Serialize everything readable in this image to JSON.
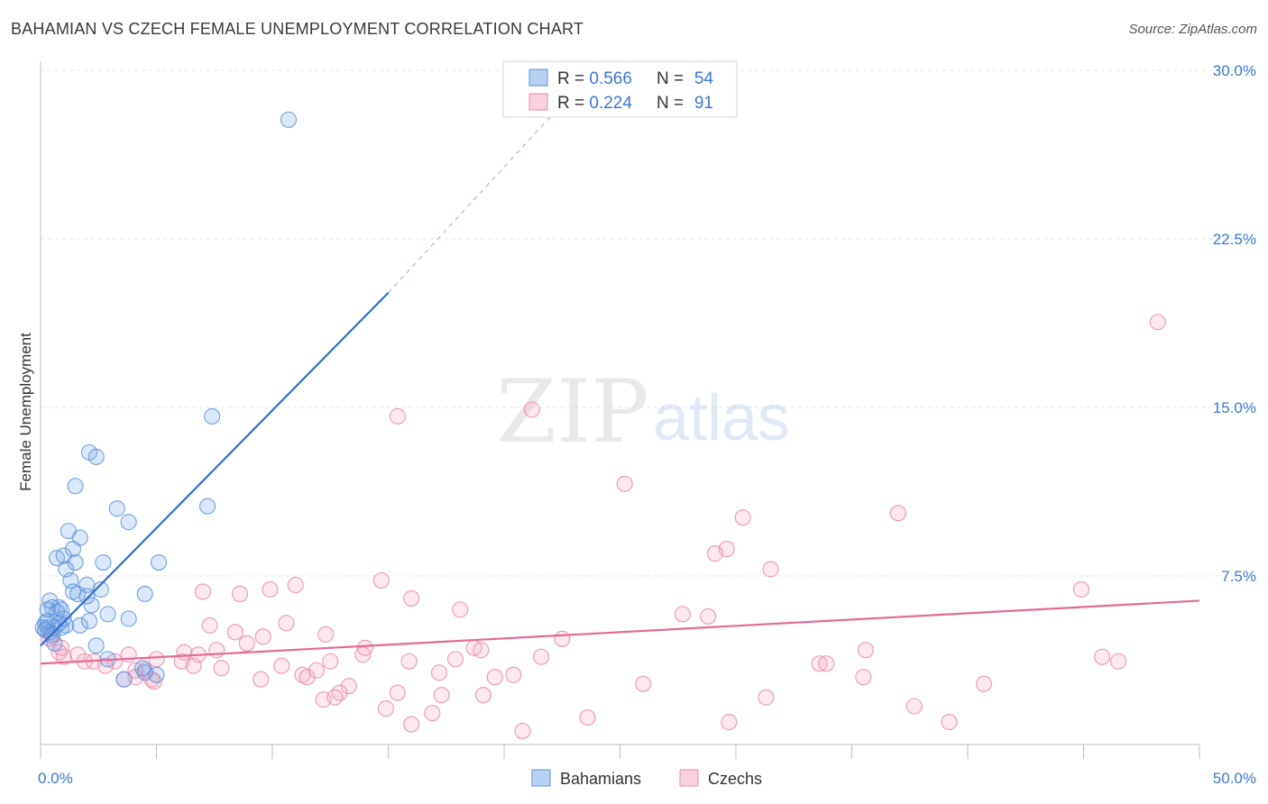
{
  "title": "BAHAMIAN VS CZECH FEMALE UNEMPLOYMENT CORRELATION CHART",
  "source": "Source: ZipAtlas.com",
  "watermark": {
    "zip": "ZIP",
    "atlas": "atlas"
  },
  "chart_data": {
    "type": "scatter",
    "title": "BAHAMIAN VS CZECH FEMALE UNEMPLOYMENT CORRELATION CHART",
    "xlabel": "",
    "ylabel": "Female Unemployment",
    "xlim": [
      0,
      50
    ],
    "ylim": [
      0,
      30
    ],
    "x_tick_labels": [
      "0.0%",
      "50.0%"
    ],
    "y_ticks": [
      7.5,
      15.0,
      22.5,
      30.0
    ],
    "y_tick_labels": [
      "7.5%",
      "15.0%",
      "22.5%",
      "30.0%"
    ],
    "grid": true,
    "legend_position": "top-center",
    "colors": {
      "bahamians": "#6fa3e6",
      "czechs": "#f3a3bd",
      "bahamians_line": "#2f6fd1",
      "czechs_line": "#e36b96",
      "accent_text": "#3a78d4"
    },
    "stats": [
      {
        "series": "Bahamians",
        "r_label": "R = ",
        "r": "0.566",
        "n_label": "N = ",
        "n": "54"
      },
      {
        "series": "Czechs",
        "r_label": "R = ",
        "r": "0.224",
        "n_label": "N = ",
        "n": "91"
      }
    ],
    "series": [
      {
        "name": "Bahamians",
        "trend": {
          "x": [
            0.0,
            15.0
          ],
          "y": [
            4.4,
            20.1
          ],
          "dashed_to": [
            22.5,
            28.5
          ]
        },
        "points": [
          [
            10.7,
            27.8
          ],
          [
            7.4,
            14.6
          ],
          [
            2.1,
            13.0
          ],
          [
            2.4,
            12.8
          ],
          [
            1.5,
            11.5
          ],
          [
            3.3,
            10.5
          ],
          [
            7.2,
            10.6
          ],
          [
            3.8,
            9.9
          ],
          [
            1.2,
            9.5
          ],
          [
            1.7,
            9.2
          ],
          [
            1.4,
            8.7
          ],
          [
            0.7,
            8.3
          ],
          [
            1.0,
            8.4
          ],
          [
            1.5,
            8.1
          ],
          [
            2.7,
            8.1
          ],
          [
            5.1,
            8.1
          ],
          [
            1.1,
            7.8
          ],
          [
            1.3,
            7.3
          ],
          [
            2.0,
            7.1
          ],
          [
            2.6,
            6.9
          ],
          [
            1.4,
            6.8
          ],
          [
            4.5,
            6.7
          ],
          [
            2.0,
            6.6
          ],
          [
            2.2,
            6.2
          ],
          [
            0.4,
            6.4
          ],
          [
            0.8,
            6.1
          ],
          [
            0.5,
            6.1
          ],
          [
            0.3,
            6.0
          ],
          [
            0.7,
            5.9
          ],
          [
            2.9,
            5.8
          ],
          [
            3.8,
            5.6
          ],
          [
            0.2,
            5.4
          ],
          [
            1.1,
            5.3
          ],
          [
            1.7,
            5.3
          ],
          [
            2.1,
            5.5
          ],
          [
            0.3,
            5.2
          ],
          [
            0.6,
            5.2
          ],
          [
            0.9,
            5.2
          ],
          [
            0.2,
            5.1
          ],
          [
            0.5,
            4.9
          ],
          [
            0.4,
            5.0
          ],
          [
            0.1,
            5.2
          ],
          [
            0.8,
            5.4
          ],
          [
            2.4,
            4.4
          ],
          [
            0.6,
            4.5
          ],
          [
            2.9,
            3.8
          ],
          [
            4.5,
            3.2
          ],
          [
            3.6,
            2.9
          ],
          [
            4.4,
            3.4
          ],
          [
            5.0,
            3.1
          ],
          [
            1.0,
            5.6
          ],
          [
            0.3,
            5.5
          ],
          [
            0.9,
            6.0
          ],
          [
            1.6,
            6.7
          ]
        ]
      },
      {
        "name": "Czechs",
        "trend": {
          "x": [
            0.0,
            50.0
          ],
          "y": [
            3.6,
            6.4
          ]
        },
        "points": [
          [
            48.2,
            18.8
          ],
          [
            21.2,
            14.9
          ],
          [
            15.4,
            14.6
          ],
          [
            25.2,
            11.6
          ],
          [
            30.3,
            10.1
          ],
          [
            37.0,
            10.3
          ],
          [
            29.6,
            8.7
          ],
          [
            29.1,
            8.5
          ],
          [
            31.5,
            7.8
          ],
          [
            14.7,
            7.3
          ],
          [
            11.0,
            7.1
          ],
          [
            9.9,
            6.9
          ],
          [
            7.0,
            6.8
          ],
          [
            8.6,
            6.7
          ],
          [
            16.0,
            6.5
          ],
          [
            44.9,
            6.9
          ],
          [
            18.1,
            6.0
          ],
          [
            27.7,
            5.8
          ],
          [
            28.8,
            5.7
          ],
          [
            7.3,
            5.3
          ],
          [
            10.6,
            5.4
          ],
          [
            8.4,
            5.0
          ],
          [
            12.3,
            4.9
          ],
          [
            9.6,
            4.8
          ],
          [
            22.5,
            4.7
          ],
          [
            8.9,
            4.5
          ],
          [
            14.0,
            4.3
          ],
          [
            18.7,
            4.3
          ],
          [
            19.0,
            4.2
          ],
          [
            7.6,
            4.2
          ],
          [
            6.2,
            4.1
          ],
          [
            35.6,
            4.2
          ],
          [
            0.9,
            4.3
          ],
          [
            1.6,
            4.0
          ],
          [
            3.8,
            4.0
          ],
          [
            6.8,
            4.0
          ],
          [
            13.9,
            4.0
          ],
          [
            21.6,
            3.9
          ],
          [
            1.0,
            3.9
          ],
          [
            1.9,
            3.7
          ],
          [
            2.3,
            3.7
          ],
          [
            3.2,
            3.7
          ],
          [
            5.0,
            3.8
          ],
          [
            6.1,
            3.7
          ],
          [
            15.9,
            3.7
          ],
          [
            17.9,
            3.8
          ],
          [
            12.5,
            3.7
          ],
          [
            10.4,
            3.5
          ],
          [
            33.6,
            3.6
          ],
          [
            33.9,
            3.6
          ],
          [
            45.8,
            3.9
          ],
          [
            46.5,
            3.7
          ],
          [
            2.8,
            3.5
          ],
          [
            6.6,
            3.5
          ],
          [
            7.8,
            3.4
          ],
          [
            11.9,
            3.3
          ],
          [
            4.1,
            3.3
          ],
          [
            4.5,
            3.3
          ],
          [
            17.2,
            3.2
          ],
          [
            11.3,
            3.1
          ],
          [
            11.5,
            3.0
          ],
          [
            19.6,
            3.0
          ],
          [
            20.4,
            3.1
          ],
          [
            35.5,
            3.0
          ],
          [
            9.5,
            2.9
          ],
          [
            4.1,
            3.0
          ],
          [
            4.8,
            2.9
          ],
          [
            3.6,
            2.9
          ],
          [
            4.9,
            2.8
          ],
          [
            26.0,
            2.7
          ],
          [
            40.7,
            2.7
          ],
          [
            13.3,
            2.6
          ],
          [
            12.9,
            2.3
          ],
          [
            15.4,
            2.3
          ],
          [
            17.3,
            2.2
          ],
          [
            19.1,
            2.2
          ],
          [
            12.2,
            2.0
          ],
          [
            31.3,
            2.1
          ],
          [
            14.9,
            1.6
          ],
          [
            16.9,
            1.4
          ],
          [
            37.7,
            1.7
          ],
          [
            23.6,
            1.2
          ],
          [
            16.0,
            0.9
          ],
          [
            29.7,
            1.0
          ],
          [
            20.8,
            0.6
          ],
          [
            39.2,
            1.0
          ],
          [
            12.7,
            2.1
          ],
          [
            0.8,
            4.1
          ],
          [
            0.4,
            4.7
          ],
          [
            0.2,
            5.1
          ],
          [
            0.5,
            4.8
          ]
        ]
      }
    ],
    "legend": [
      {
        "label": "Bahamians",
        "color": "#6fa3e6"
      },
      {
        "label": "Czechs",
        "color": "#f3a3bd"
      }
    ]
  }
}
